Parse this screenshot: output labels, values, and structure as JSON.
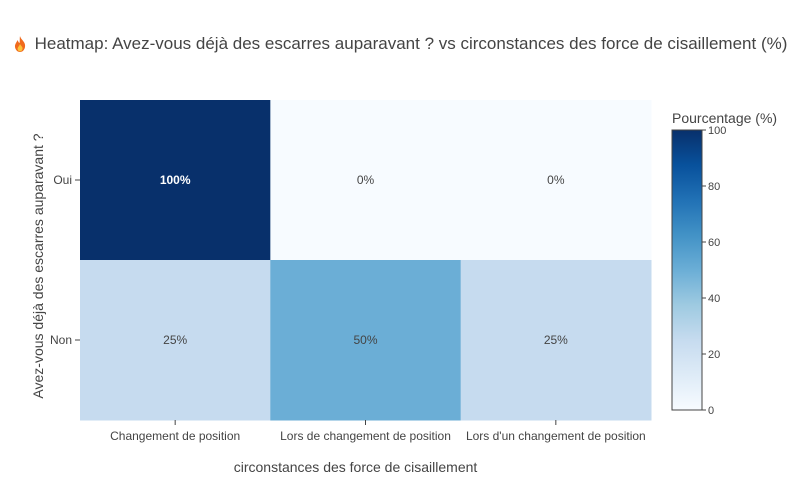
{
  "chart_data": {
    "type": "heatmap",
    "title_icon": "fire-icon",
    "title": "Heatmap: Avez-vous déjà des escarres auparavant ? vs circonstances des force de cisaillement (%)",
    "xlabel": "circonstances des force de cisaillement",
    "ylabel": "Avez-vous déjà des escarres auparavant ?",
    "x_categories": [
      "Changement de position",
      "Lors de changement de position",
      "Lors d'un changement de position"
    ],
    "y_categories": [
      "Oui",
      "Non"
    ],
    "values": [
      [
        100,
        0,
        0
      ],
      [
        25,
        50,
        25
      ]
    ],
    "cell_labels": [
      [
        "100%",
        "0%",
        "0%"
      ],
      [
        "25%",
        "50%",
        "25%"
      ]
    ],
    "colorbar": {
      "title": "Pourcentage (%)",
      "range": [
        0,
        100
      ],
      "ticks": [
        "0",
        "20",
        "40",
        "60",
        "80",
        "100"
      ]
    },
    "colorscale": [
      "#f7fbff",
      "#deebf7",
      "#c6dbef",
      "#9ecae1",
      "#6baed6",
      "#4292c6",
      "#2171b5",
      "#08519c",
      "#08306b"
    ]
  }
}
